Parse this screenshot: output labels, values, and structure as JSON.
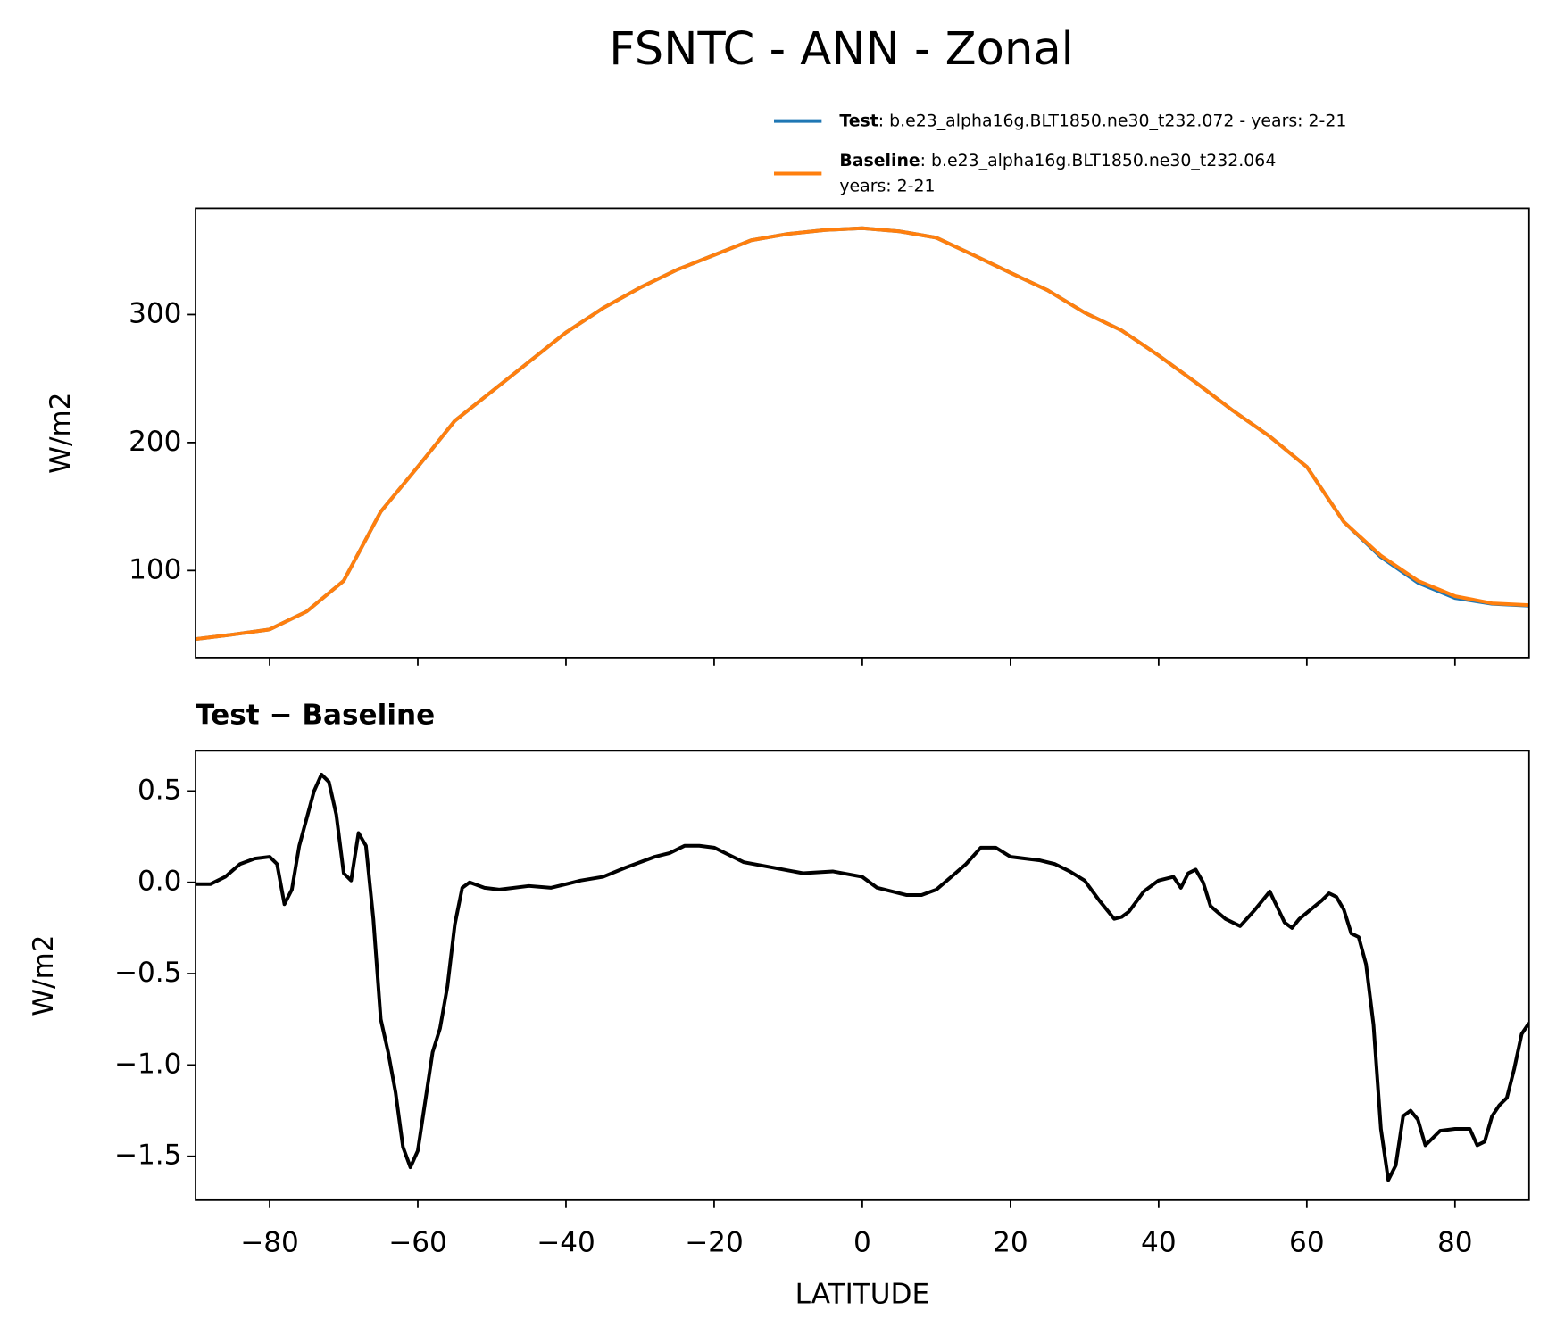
{
  "chart_data": [
    {
      "type": "line",
      "title": "FSNTC - ANN - Zonal",
      "ylabel": "W/m2",
      "x": [
        -90,
        -85,
        -80,
        -75,
        -70,
        -65,
        -60,
        -55,
        -50,
        -45,
        -40,
        -35,
        -30,
        -25,
        -20,
        -15,
        -10,
        -5,
        0,
        5,
        10,
        15,
        20,
        25,
        30,
        35,
        40,
        45,
        50,
        55,
        60,
        65,
        70,
        75,
        80,
        85,
        90
      ],
      "series": [
        {
          "name": "Test",
          "description": [
            ": b.e23_alpha16g.BLT1850.ne30_t232.072 - years: 2-21"
          ],
          "color": "#1f77b4",
          "values": [
            46.5,
            50,
            54,
            68,
            92,
            146,
            181,
            217,
            240,
            263,
            286,
            305,
            321,
            335,
            346.5,
            358,
            363,
            366,
            367.4,
            365,
            360,
            346.5,
            332.6,
            319,
            301.5,
            287.6,
            268,
            247,
            225,
            204.7,
            181,
            138,
            110.5,
            90.5,
            78.5,
            74,
            72.5
          ]
        },
        {
          "name": "Baseline",
          "description": [
            ": b.e23_alpha16g.BLT1850.ne30_t232.064",
            "years: 2-21"
          ],
          "color": "#ff7f0e",
          "values": [
            46.5,
            50,
            54,
            68,
            92,
            146,
            181,
            217,
            240,
            263,
            286,
            305,
            321,
            335,
            346.5,
            358,
            363,
            366,
            367.4,
            365,
            360,
            346.5,
            332.6,
            319,
            301.5,
            287.6,
            268,
            247,
            225,
            204.7,
            181,
            138,
            111.6,
            92,
            80,
            74.4,
            73
          ]
        }
      ],
      "xlim": [
        -90,
        90
      ],
      "xticks": [
        -80,
        -60,
        -40,
        -20,
        0,
        20,
        40,
        60,
        80
      ],
      "ylim": [
        32,
        383
      ],
      "yticks": [
        100,
        200,
        300
      ]
    },
    {
      "type": "line",
      "title": "Test − Baseline",
      "ylabel": "W/m2",
      "xlabel": "LATITUDE",
      "x": [
        -90,
        -88,
        -86,
        -84,
        -82,
        -80,
        -79,
        -78,
        -77,
        -76,
        -74,
        -73,
        -72,
        -71,
        -70,
        -69,
        -68,
        -67,
        -66,
        -65,
        -64,
        -63,
        -62,
        -61,
        -60,
        -59,
        -58,
        -57,
        -56,
        -55,
        -54,
        -53,
        -51,
        -49,
        -45,
        -42,
        -38,
        -35,
        -32,
        -28,
        -26,
        -24,
        -22,
        -20,
        -18,
        -16,
        -12,
        -8,
        -4,
        0,
        2,
        4,
        6,
        8,
        10,
        12,
        14,
        16,
        18,
        20,
        22,
        24,
        26,
        28,
        30,
        32,
        34,
        35,
        36,
        38,
        40,
        42,
        43,
        44,
        45,
        46,
        47,
        49,
        51,
        53,
        55,
        57,
        58,
        59,
        62,
        63,
        64,
        65,
        66,
        67,
        68,
        69,
        70,
        71,
        72,
        73,
        74,
        75,
        76,
        77,
        78,
        80,
        82,
        83,
        84,
        85,
        86,
        87,
        88,
        89,
        90
      ],
      "series": [
        {
          "name": "Test − Baseline",
          "color": "#000000",
          "values": [
            -0.01,
            -0.01,
            0.03,
            0.1,
            0.13,
            0.14,
            0.1,
            -0.12,
            -0.04,
            0.2,
            0.5,
            0.59,
            0.55,
            0.37,
            0.05,
            0.01,
            0.27,
            0.2,
            -0.2,
            -0.75,
            -0.93,
            -1.15,
            -1.45,
            -1.56,
            -1.47,
            -1.2,
            -0.93,
            -0.8,
            -0.57,
            -0.23,
            -0.03,
            0.0,
            -0.03,
            -0.04,
            -0.02,
            -0.03,
            0.01,
            0.03,
            0.08,
            0.14,
            0.16,
            0.2,
            0.2,
            0.19,
            0.15,
            0.11,
            0.08,
            0.05,
            0.06,
            0.03,
            -0.03,
            -0.05,
            -0.07,
            -0.07,
            -0.04,
            0.03,
            0.1,
            0.19,
            0.19,
            0.14,
            0.13,
            0.12,
            0.1,
            0.06,
            0.01,
            -0.1,
            -0.2,
            -0.19,
            -0.16,
            -0.05,
            0.01,
            0.03,
            -0.03,
            0.05,
            0.07,
            0.0,
            -0.13,
            -0.2,
            -0.24,
            -0.15,
            -0.05,
            -0.22,
            -0.25,
            -0.2,
            -0.1,
            -0.06,
            -0.08,
            -0.15,
            -0.28,
            -0.3,
            -0.45,
            -0.78,
            -1.35,
            -1.63,
            -1.55,
            -1.28,
            -1.25,
            -1.3,
            -1.44,
            -1.4,
            -1.36,
            -1.35,
            -1.35,
            -1.44,
            -1.42,
            -1.28,
            -1.22,
            -1.18,
            -1.02,
            -0.83,
            -0.77
          ]
        }
      ],
      "xlim": [
        -90,
        90
      ],
      "xticks": [
        {
          "value": -80,
          "label": "−80"
        },
        {
          "value": -60,
          "label": "−60"
        },
        {
          "value": -40,
          "label": "−40"
        },
        {
          "value": -20,
          "label": "−20"
        },
        0,
        20,
        40,
        60,
        80
      ],
      "ylim": [
        -1.74,
        0.72
      ],
      "yticks": [
        {
          "value": -1.5,
          "label": "−1.5"
        },
        {
          "value": -1.0,
          "label": "−1.0"
        },
        {
          "value": -0.5,
          "label": "−0.5"
        },
        {
          "value": 0.0,
          "label": "0.0"
        },
        0.5
      ]
    }
  ]
}
